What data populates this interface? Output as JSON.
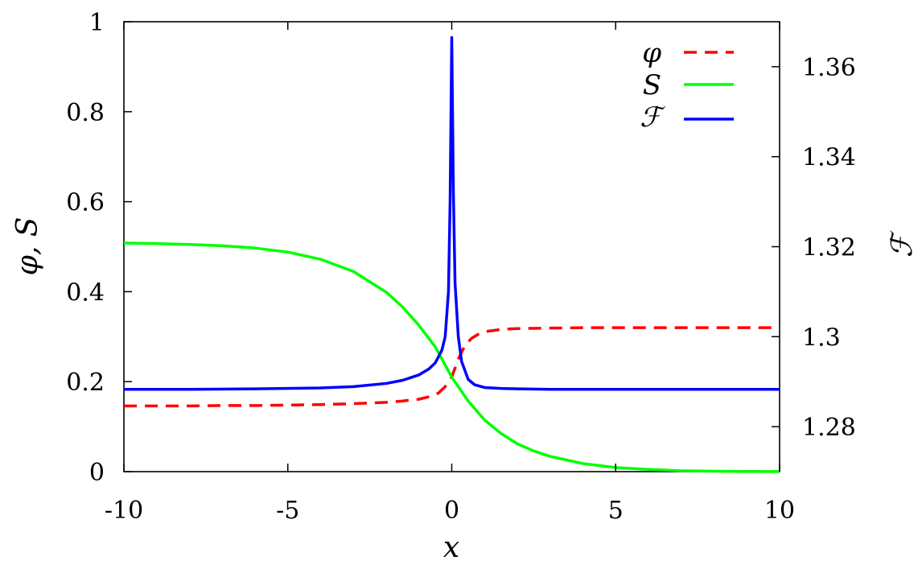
{
  "chart_data": {
    "type": "line",
    "xlabel": "x",
    "ylabel": "φ, S",
    "y2label": "ℱ",
    "xlim": [
      -10,
      10
    ],
    "ylim": [
      0,
      1
    ],
    "y2lim": [
      1.27,
      1.37
    ],
    "xticks": [
      "-10",
      "-5",
      "0",
      "5",
      "10"
    ],
    "yticks": [
      "0",
      "0.2",
      "0.4",
      "0.6",
      "0.8",
      "1"
    ],
    "y2ticks": [
      "1.28",
      "1.3",
      "1.32",
      "1.34",
      "1.36"
    ],
    "grid": false,
    "legend_position": "top-right",
    "series": [
      {
        "name": "φ",
        "axis": "left",
        "color": "#ff0000",
        "dash": true,
        "x": [
          -10,
          -9,
          -8,
          -7,
          -6,
          -5,
          -4,
          -3,
          -2,
          -1.5,
          -1,
          -0.6,
          -0.4,
          -0.2,
          0,
          0.2,
          0.4,
          0.6,
          0.8,
          1,
          1.5,
          2,
          3,
          4,
          5,
          6,
          7,
          8,
          9,
          10
        ],
        "y": [
          0.146,
          0.146,
          0.146,
          0.147,
          0.147,
          0.148,
          0.149,
          0.151,
          0.154,
          0.157,
          0.161,
          0.168,
          0.175,
          0.189,
          0.21,
          0.25,
          0.28,
          0.296,
          0.305,
          0.311,
          0.316,
          0.318,
          0.319,
          0.32,
          0.32,
          0.32,
          0.32,
          0.32,
          0.32,
          0.32
        ]
      },
      {
        "name": "S",
        "axis": "left",
        "color": "#00ff00",
        "dash": false,
        "x": [
          -10,
          -9,
          -8,
          -7,
          -6,
          -5,
          -4,
          -3,
          -2,
          -1.5,
          -1,
          -0.5,
          0,
          0.5,
          1,
          1.5,
          2,
          2.5,
          3,
          4,
          5,
          6,
          7,
          8,
          9,
          10
        ],
        "y": [
          0.508,
          0.507,
          0.505,
          0.502,
          0.497,
          0.488,
          0.472,
          0.445,
          0.399,
          0.366,
          0.325,
          0.277,
          0.21,
          0.157,
          0.115,
          0.085,
          0.062,
          0.046,
          0.034,
          0.018,
          0.009,
          0.005,
          0.002,
          0.001,
          0.0005,
          0.0002
        ]
      },
      {
        "name": "ℱ",
        "axis": "right",
        "color": "#0000ff",
        "dash": false,
        "x": [
          -10,
          -8,
          -6,
          -4,
          -3,
          -2,
          -1.5,
          -1,
          -0.7,
          -0.5,
          -0.3,
          -0.2,
          -0.1,
          -0.05,
          0,
          0.05,
          0.1,
          0.2,
          0.3,
          0.5,
          0.7,
          1,
          1.5,
          2,
          3,
          4,
          6,
          8,
          10
        ],
        "y": [
          1.2883,
          1.2883,
          1.2884,
          1.2886,
          1.2889,
          1.2896,
          1.2903,
          1.2915,
          1.2928,
          1.2942,
          1.297,
          1.3,
          1.31,
          1.33,
          1.3665,
          1.332,
          1.312,
          1.3,
          1.2945,
          1.2905,
          1.2893,
          1.2887,
          1.2885,
          1.2884,
          1.2883,
          1.2883,
          1.2883,
          1.2883,
          1.2883
        ]
      }
    ]
  }
}
